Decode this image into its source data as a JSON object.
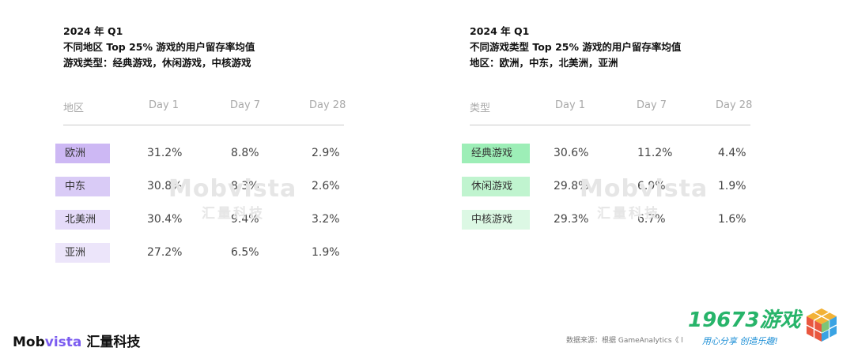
{
  "colors": {
    "region_chips": [
      "#cdb8f4",
      "#d9cbf6",
      "#e5dbf9",
      "#ece5fa"
    ],
    "genre_chips": [
      "#9deeb7",
      "#c0f4cf",
      "#dcf8e4"
    ]
  },
  "watermark": {
    "en": "Mobvista",
    "cn": "汇量科技"
  },
  "left": {
    "line1": "2024 年 Q1",
    "line2": "不同地区 Top 25% 游戏的用户留存率均值",
    "line3": "游戏类型：经典游戏，休闲游戏，中核游戏",
    "headers": [
      "地区",
      "Day 1",
      "Day 7",
      "Day 28"
    ],
    "rows": [
      {
        "label": "欧洲",
        "d1": "31.2%",
        "d7": "8.8%",
        "d28": "2.9%"
      },
      {
        "label": "中东",
        "d1": "30.8%",
        "d7": "8.3%",
        "d28": "2.6%"
      },
      {
        "label": "北美洲",
        "d1": "30.4%",
        "d7": "9.4%",
        "d28": "3.2%"
      },
      {
        "label": "亚洲",
        "d1": "27.2%",
        "d7": "6.5%",
        "d28": "1.9%"
      }
    ]
  },
  "right": {
    "line1": "2024 年 Q1",
    "line2": "不同游戏类型 Top 25% 游戏的用户留存率均值",
    "line3": "地区：欧洲，中东，北美洲，亚洲",
    "headers": [
      "类型",
      "Day 1",
      "Day 7",
      "Day 28"
    ],
    "rows": [
      {
        "label": "经典游戏",
        "d1": "30.6%",
        "d7": "11.2%",
        "d28": "4.4%"
      },
      {
        "label": "休闲游戏",
        "d1": "29.8%",
        "d7": "6.9%",
        "d28": "1.9%"
      },
      {
        "label": "中核游戏",
        "d1": "29.3%",
        "d7": "6.7%",
        "d28": "1.6%"
      }
    ]
  },
  "footer": {
    "brand_en_a": "Mob",
    "brand_en_b": "vista",
    "brand_cn": "汇量科技",
    "source": "数据来源：根据 GameAnalytics《 l",
    "site_name": "19673游戏",
    "site_slogan": "用心分享  创造乐趣!",
    "site_icon": "cube-icon"
  },
  "chart_data": [
    {
      "type": "table",
      "title": "不同地区 Top 25% 游戏的用户留存率均值",
      "columns": [
        "地区",
        "Day 1",
        "Day 7",
        "Day 28"
      ],
      "rows": [
        [
          "欧洲",
          31.2,
          8.8,
          2.9
        ],
        [
          "中东",
          30.8,
          8.3,
          2.6
        ],
        [
          "北美洲",
          30.4,
          9.4,
          3.2
        ],
        [
          "亚洲",
          27.2,
          6.5,
          1.9
        ]
      ]
    },
    {
      "type": "table",
      "title": "不同游戏类型 Top 25% 游戏的用户留存率均值",
      "columns": [
        "类型",
        "Day 1",
        "Day 7",
        "Day 28"
      ],
      "rows": [
        [
          "经典游戏",
          30.6,
          11.2,
          4.4
        ],
        [
          "休闲游戏",
          29.8,
          6.9,
          1.9
        ],
        [
          "中核游戏",
          29.3,
          6.7,
          1.6
        ]
      ]
    }
  ]
}
